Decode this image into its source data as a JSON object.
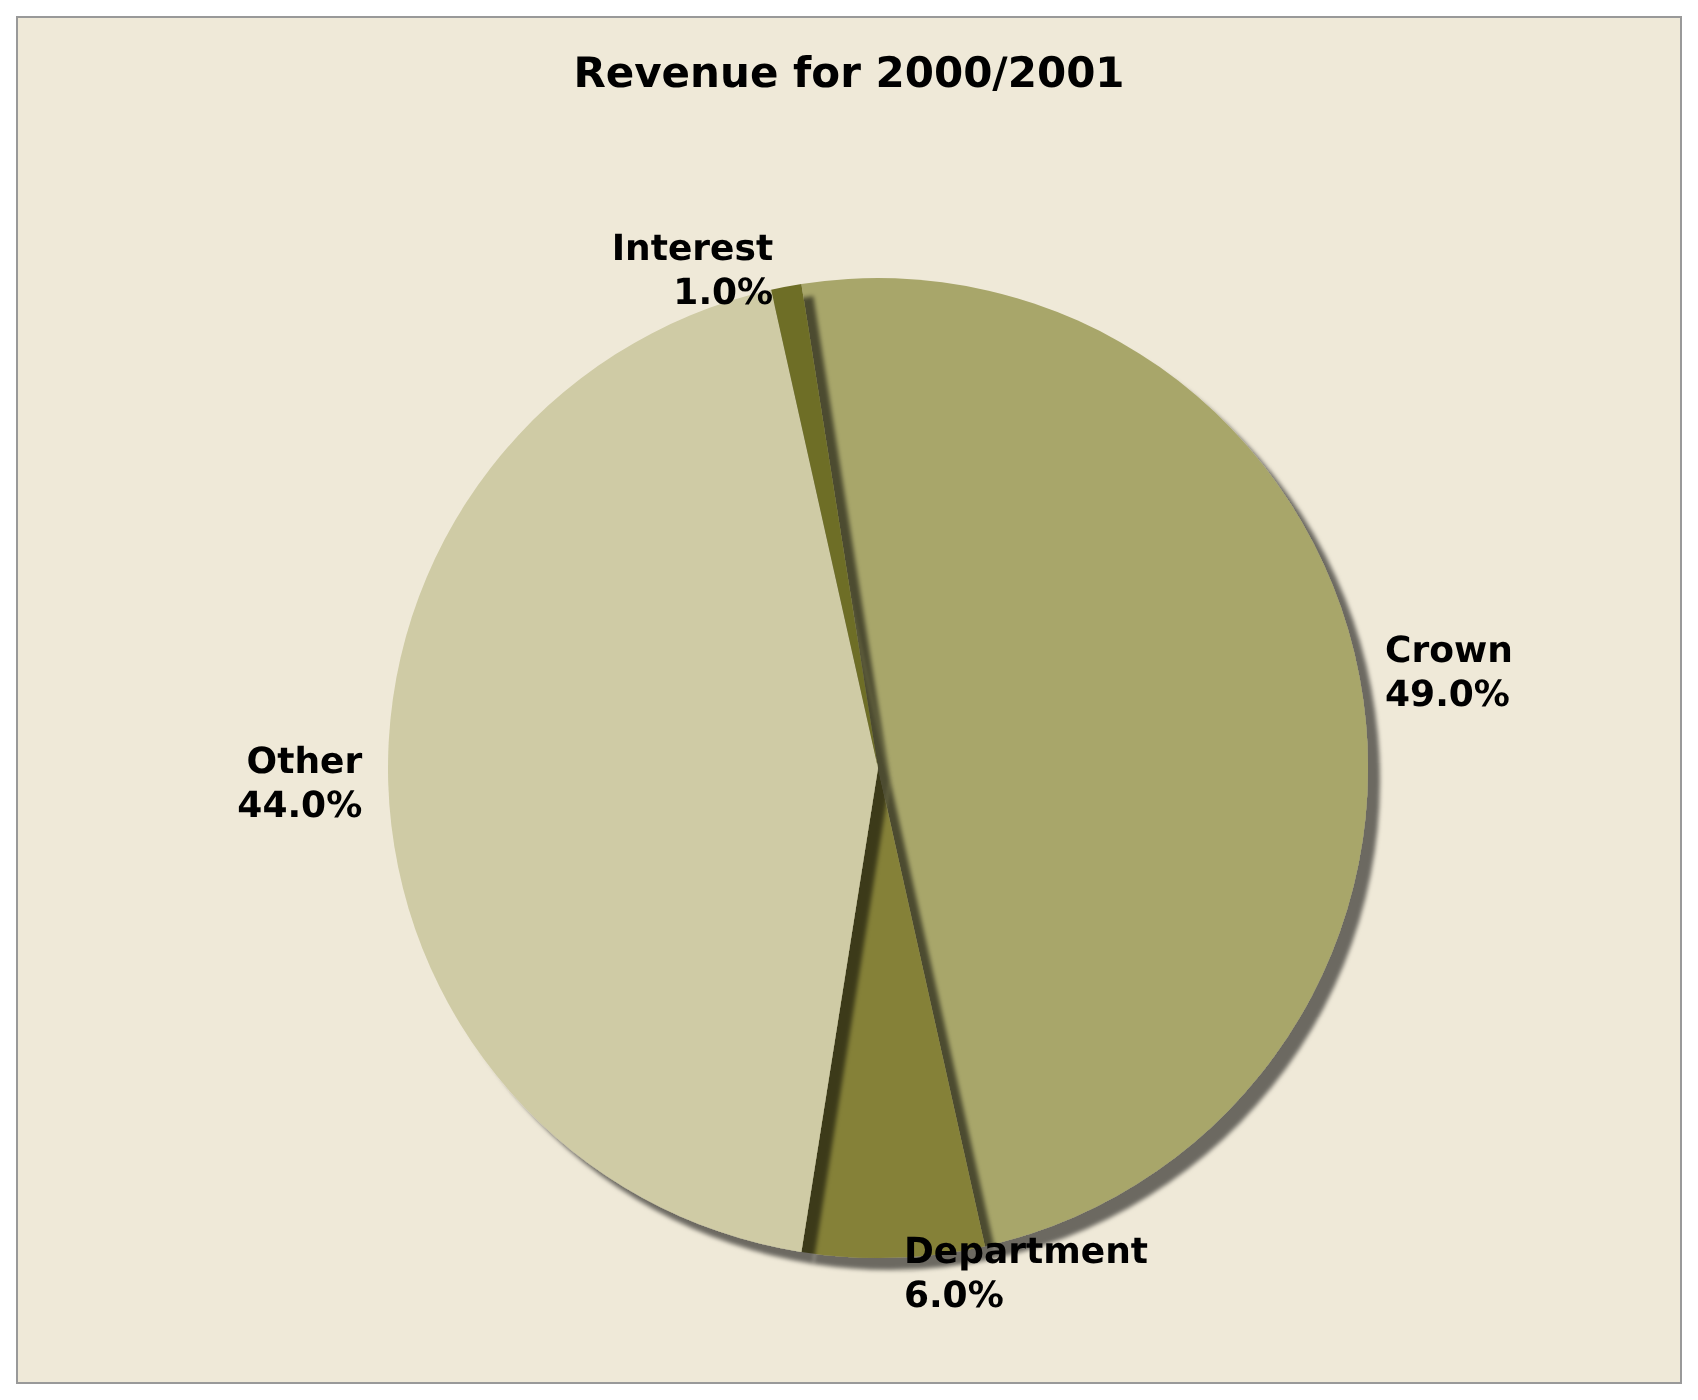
{
  "chart_data": {
    "type": "pie",
    "title": "Revenue for 2000/2001",
    "categories": [
      "Crown",
      "Department",
      "Other",
      "Interest"
    ],
    "values": [
      49,
      6,
      44,
      1
    ],
    "value_labels": [
      "49.0%",
      "6.0%",
      "44.0%",
      "1.0%"
    ],
    "colors": [
      "#a8a66b",
      "#858139",
      "#cfcba5",
      "#6e6e28"
    ],
    "legend": false
  }
}
